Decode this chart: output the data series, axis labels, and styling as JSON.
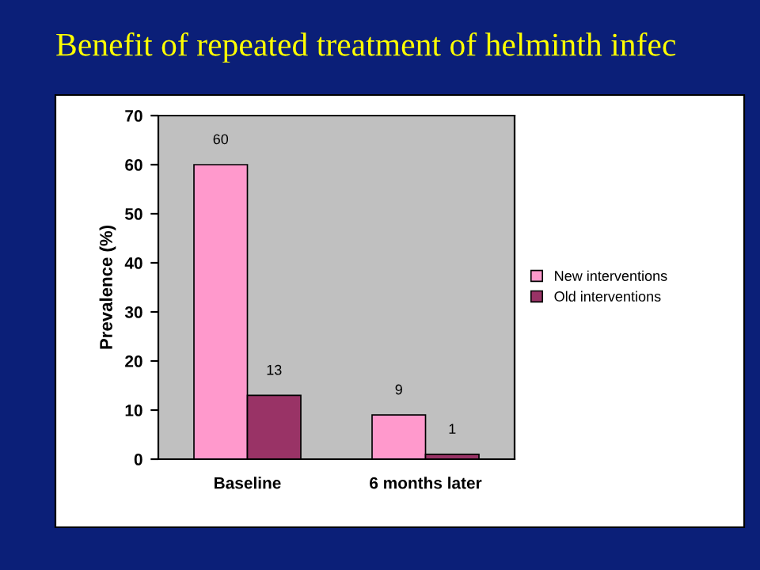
{
  "chart_data": {
    "type": "bar",
    "title": "Benefit of repeated treatment of helminth infec",
    "ylabel": "Prevalence (%)",
    "categories": [
      "Baseline",
      "6 months later"
    ],
    "series": [
      {
        "name": "New interventions",
        "color": "#ff99cc",
        "values": [
          60,
          9
        ]
      },
      {
        "name": "Old interventions",
        "color": "#993366",
        "values": [
          13,
          1
        ]
      }
    ],
    "ylim": [
      0,
      70
    ],
    "yticks": [
      0,
      10,
      20,
      30,
      40,
      50,
      60,
      70
    ],
    "grid": false,
    "legend": "right",
    "data_labels": true
  }
}
